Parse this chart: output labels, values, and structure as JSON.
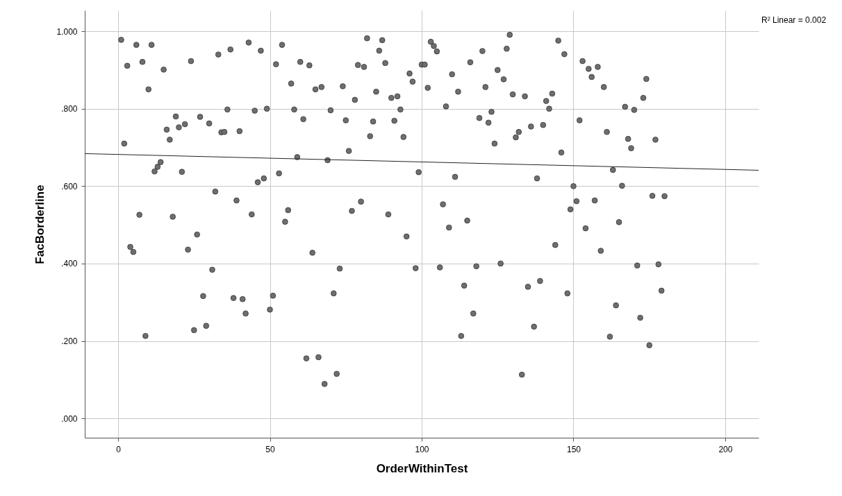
{
  "chart_data": {
    "type": "scatter",
    "xlabel": "OrderWithinTest",
    "ylabel": "FacBorderline",
    "annotations": [
      "R² Linear = 0.002"
    ],
    "xlim": [
      -11,
      211
    ],
    "ylim": [
      -0.05,
      1.054
    ],
    "xticks": [
      0,
      50,
      100,
      150,
      200
    ],
    "yticks": [
      {
        "value": 0,
        "label": ".000"
      },
      {
        "value": 0.2,
        "label": ".200"
      },
      {
        "value": 0.4,
        "label": ".400"
      },
      {
        "value": 0.6,
        "label": ".600"
      },
      {
        "value": 0.8,
        "label": ".800"
      },
      {
        "value": 1,
        "label": "1.000"
      }
    ],
    "grid": true,
    "x": [
      1,
      2,
      3,
      4,
      5,
      6,
      7,
      8,
      9,
      10,
      11,
      12,
      13,
      14,
      15,
      16,
      17,
      18,
      19,
      20,
      21,
      22,
      23,
      24,
      25,
      26,
      27,
      28,
      29,
      30,
      31,
      32,
      33,
      34,
      35,
      36,
      37,
      38,
      39,
      40,
      41,
      42,
      43,
      44,
      45,
      46,
      47,
      48,
      49,
      50,
      51,
      52,
      53,
      54,
      55,
      56,
      57,
      58,
      59,
      60,
      61,
      62,
      63,
      64,
      65,
      66,
      67,
      68,
      69,
      70,
      71,
      72,
      73,
      74,
      75,
      76,
      77,
      78,
      79,
      80,
      81,
      82,
      83,
      84,
      85,
      86,
      87,
      88,
      89,
      90,
      91,
      92,
      93,
      94,
      95,
      96,
      97,
      98,
      99,
      100,
      101,
      102,
      103,
      104,
      105,
      106,
      107,
      108,
      109,
      110,
      111,
      112,
      113,
      114,
      115,
      116,
      117,
      118,
      119,
      120,
      121,
      122,
      123,
      124,
      125,
      126,
      127,
      128,
      129,
      130,
      131,
      132,
      133,
      134,
      135,
      136,
      137,
      138,
      139,
      140,
      141,
      142,
      143,
      144,
      145,
      146,
      147,
      148,
      149,
      150,
      151,
      152,
      153,
      154,
      155,
      156,
      157,
      158,
      159,
      160,
      161,
      162,
      163,
      164,
      165,
      166,
      167,
      168,
      169,
      170,
      171,
      172,
      173,
      174,
      175,
      176,
      177,
      178,
      179,
      180
    ],
    "series": [
      {
        "color": "#6e6e6e",
        "marker": "circle",
        "values": [
          0.978,
          0.71,
          0.911,
          0.443,
          0.43,
          0.965,
          0.526,
          0.921,
          0.213,
          0.85,
          0.965,
          0.638,
          0.65,
          0.662,
          0.901,
          0.746,
          0.72,
          0.521,
          0.78,
          0.752,
          0.637,
          0.76,
          0.436,
          0.923,
          0.228,
          0.475,
          0.779,
          0.316,
          0.239,
          0.762,
          0.384,
          0.586,
          0.94,
          0.739,
          0.74,
          0.798,
          0.953,
          0.311,
          0.563,
          0.742,
          0.308,
          0.271,
          0.971,
          0.527,
          0.795,
          0.61,
          0.95,
          0.62,
          0.8,
          0.281,
          0.317,
          0.915,
          0.633,
          0.965,
          0.508,
          0.538,
          0.865,
          0.798,
          0.675,
          0.921,
          0.773,
          0.155,
          0.912,
          0.428,
          0.85,
          0.158,
          0.856,
          0.089,
          0.667,
          0.796,
          0.323,
          0.115,
          0.387,
          0.858,
          0.77,
          0.691,
          0.536,
          0.823,
          0.913,
          0.56,
          0.908,
          0.982,
          0.729,
          0.767,
          0.844,
          0.95,
          0.977,
          0.918,
          0.527,
          0.828,
          0.769,
          0.832,
          0.798,
          0.727,
          0.47,
          0.891,
          0.87,
          0.388,
          0.636,
          0.914,
          0.914,
          0.854,
          0.973,
          0.962,
          0.948,
          0.39,
          0.553,
          0.806,
          0.493,
          0.889,
          0.624,
          0.844,
          0.213,
          0.343,
          0.511,
          0.92,
          0.271,
          0.393,
          0.776,
          0.949,
          0.856,
          0.764,
          0.792,
          0.71,
          0.9,
          0.4,
          0.876,
          0.955,
          0.991,
          0.837,
          0.726,
          0.74,
          0.113,
          0.832,
          0.34,
          0.754,
          0.237,
          0.62,
          0.355,
          0.758,
          0.82,
          0.8,
          0.839,
          0.448,
          0.976,
          0.687,
          0.941,
          0.323,
          0.54,
          0.6,
          0.561,
          0.77,
          0.923,
          0.491,
          0.903,
          0.882,
          0.563,
          0.908,
          0.433,
          0.856,
          0.74,
          0.211,
          0.642,
          0.292,
          0.507,
          0.601,
          0.805,
          0.722,
          0.698,
          0.797,
          0.395,
          0.26,
          0.828,
          0.877,
          0.189,
          0.575,
          0.72,
          0.398,
          0.33,
          0.574
        ]
      },
      {
        "type": "line",
        "marker": "none",
        "color": "#222222",
        "x": [
          -11,
          211
        ],
        "values": [
          0.684,
          0.641
        ]
      }
    ]
  }
}
